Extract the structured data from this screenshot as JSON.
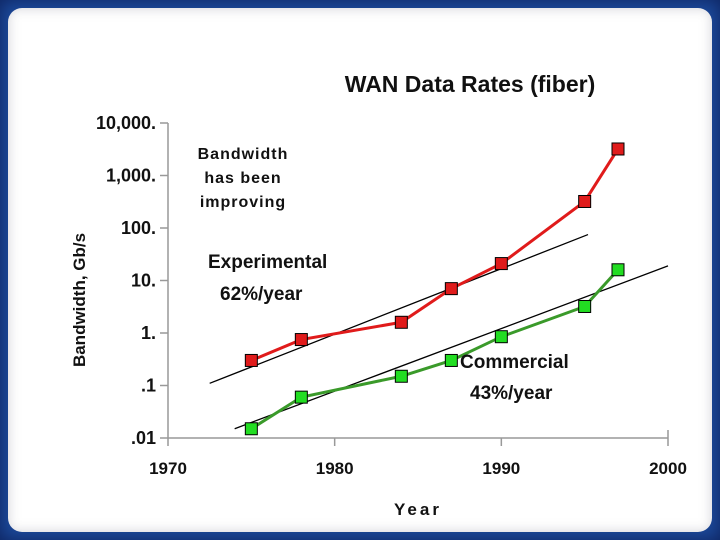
{
  "chart_data": {
    "type": "line",
    "title": "WAN Data Rates (fiber)",
    "xlabel": "Year",
    "ylabel": "Bandwidth, Gb/s",
    "y_scale": "log",
    "xlim": [
      1970,
      2000
    ],
    "ylim": [
      0.01,
      10000
    ],
    "x_ticks": [
      1970,
      1980,
      1990,
      2000
    ],
    "x_tick_labels": [
      "1970",
      "1980",
      "1990",
      "2000"
    ],
    "y_ticks": [
      0.01,
      0.1,
      1,
      10,
      100,
      1000,
      10000
    ],
    "y_tick_labels": [
      ".01",
      ".1",
      "1.",
      "10.",
      "100.",
      "1,000.",
      "10,000."
    ],
    "series": [
      {
        "name": "Experimental",
        "rate": "62%/year",
        "color": "#e01b1b",
        "marker_color": "#e01b1b",
        "x": [
          1975,
          1978,
          1984,
          1987,
          1990,
          1995,
          1997
        ],
        "values": [
          0.3,
          0.75,
          1.6,
          7,
          21,
          320,
          3200
        ]
      },
      {
        "name": "Commercial",
        "rate": "43%/year",
        "color": "#3a9a2a",
        "marker_color": "#22dd22",
        "x": [
          1975,
          1978,
          1984,
          1987,
          1990,
          1995,
          1997
        ],
        "values": [
          0.015,
          0.06,
          0.15,
          0.3,
          0.85,
          3.2,
          16
        ]
      }
    ],
    "trend_lines": [
      {
        "name": "Experimental trend",
        "x": [
          1972.5,
          1995.2
        ],
        "values": [
          0.11,
          75
        ]
      },
      {
        "name": "Commercial trend",
        "x": [
          1974,
          2000
        ],
        "values": [
          0.015,
          19
        ]
      }
    ],
    "annotations": {
      "bandwidth_note": [
        "Bandwidth",
        "has been",
        "improving"
      ],
      "experimental_label": "Experimental",
      "experimental_rate": "62%/year",
      "commercial_label": "Commercial",
      "commercial_rate": "43%/year"
    }
  }
}
